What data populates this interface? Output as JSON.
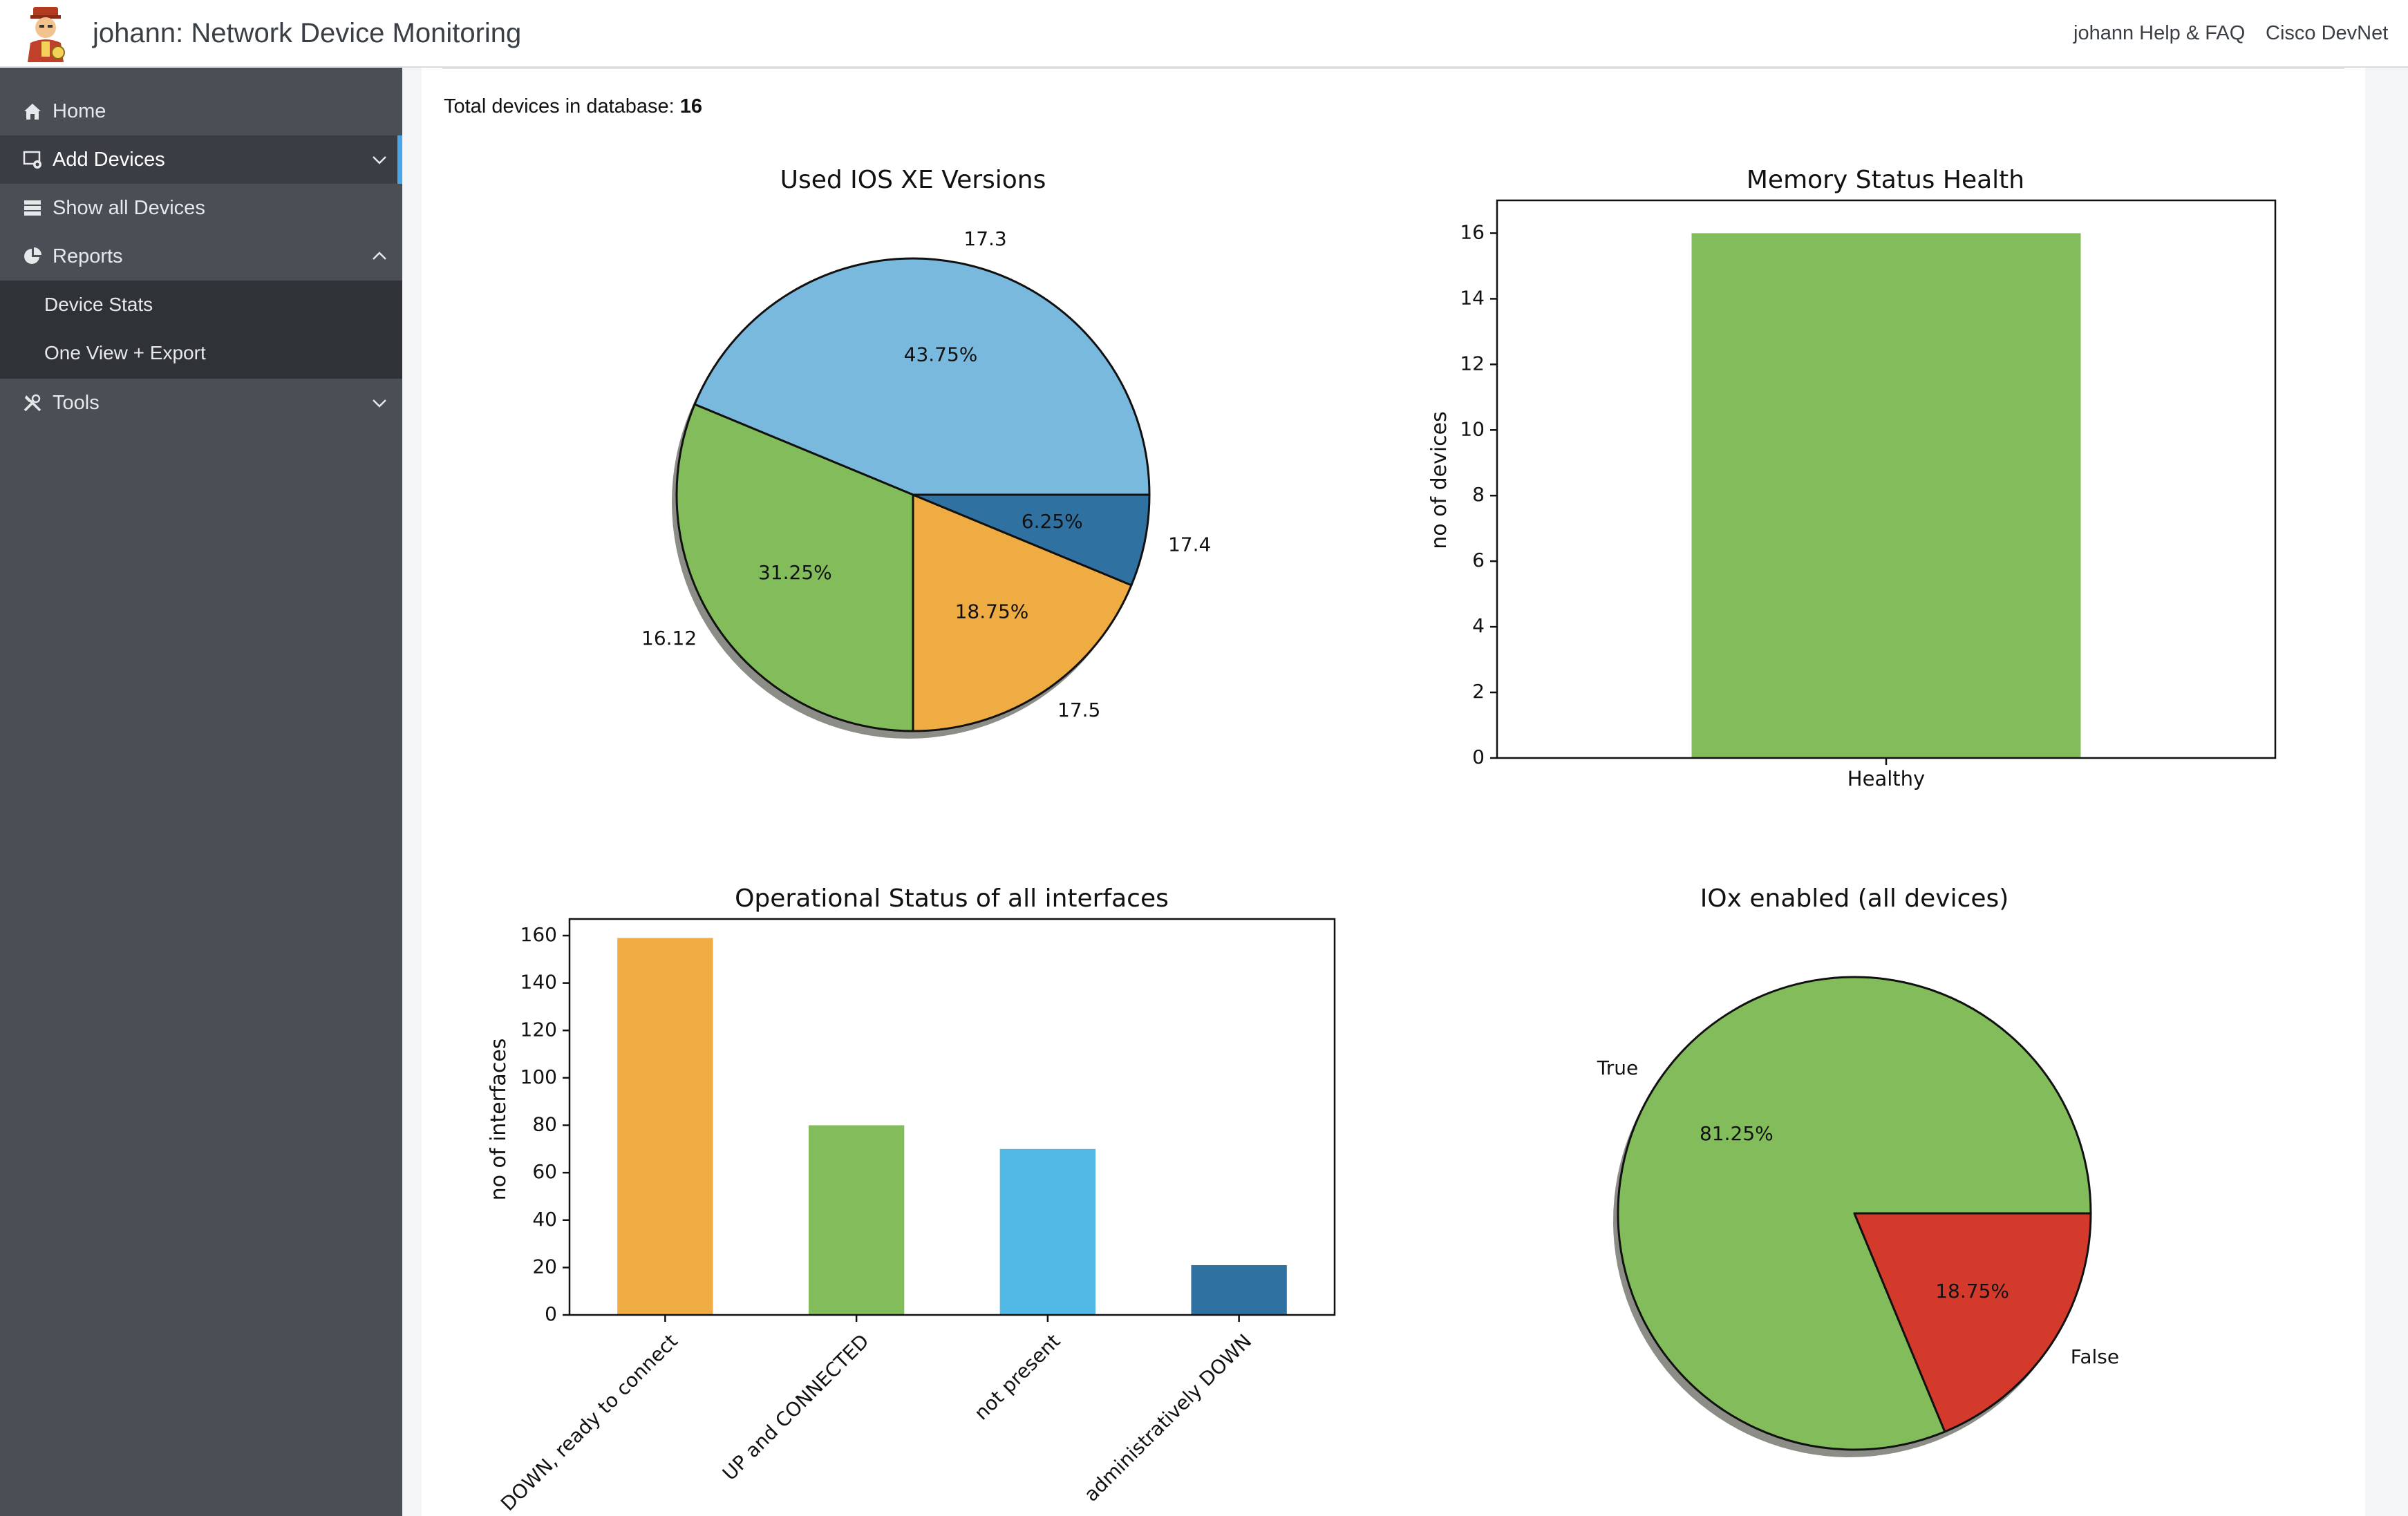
{
  "header": {
    "app_title": "johann: Network Device Monitoring",
    "links": [
      "johann Help & FAQ",
      "Cisco DevNet"
    ]
  },
  "sidebar": {
    "items": [
      {
        "label": "Home",
        "icon": "home-icon"
      },
      {
        "label": "Add Devices",
        "icon": "add-device-icon",
        "active": true
      },
      {
        "label": "Show all Devices",
        "icon": "list-icon"
      },
      {
        "label": "Reports",
        "icon": "pie-chart-icon",
        "expanded": true,
        "children": [
          "Device Stats",
          "One View + Export"
        ]
      },
      {
        "label": "Tools",
        "icon": "tools-icon"
      }
    ]
  },
  "main": {
    "total_label": "Total devices in database:",
    "total_value": "16"
  },
  "colors": {
    "lightblue": "#79b9dd",
    "green": "#82bc5b",
    "orange": "#efac42",
    "darkblue": "#2f72a1",
    "skyblue": "#52b9e7",
    "red": "#d43a2c",
    "accent": "#49a6e8"
  },
  "chart_data": [
    {
      "type": "pie",
      "title": "Used IOS XE Versions",
      "labels": [
        "17.3",
        "16.12",
        "17.5",
        "17.4"
      ],
      "values": [
        43.75,
        31.25,
        18.75,
        6.25
      ],
      "percent_labels": [
        "43.75%",
        "31.25%",
        "18.75%",
        "6.25%"
      ],
      "colors": [
        "#79b9dd",
        "#82bc5b",
        "#efac42",
        "#2f72a1"
      ]
    },
    {
      "type": "bar",
      "title": "Memory Status Health",
      "categories": [
        "Healthy"
      ],
      "values": [
        16
      ],
      "xlabel": "",
      "ylabel": "no of devices",
      "ylim": [
        0,
        17
      ],
      "yticks": [
        0,
        2,
        4,
        6,
        8,
        10,
        12,
        14,
        16
      ],
      "colors": [
        "#82bc5b"
      ]
    },
    {
      "type": "bar",
      "title": "Operational Status of all interfaces",
      "categories": [
        "DOWN, ready to connect",
        "UP and CONNECTED",
        "not present",
        "administratively DOWN"
      ],
      "values": [
        159,
        80,
        70,
        21
      ],
      "xlabel": "",
      "ylabel": "no of interfaces",
      "ylim": [
        0,
        167
      ],
      "yticks": [
        0,
        20,
        40,
        60,
        80,
        100,
        120,
        140,
        160
      ],
      "colors": [
        "#efac42",
        "#82bc5b",
        "#52b9e7",
        "#2f72a1"
      ]
    },
    {
      "type": "pie",
      "title": "IOx enabled (all devices)",
      "labels": [
        "True",
        "False"
      ],
      "values": [
        81.25,
        18.75
      ],
      "percent_labels": [
        "81.25%",
        "18.75%"
      ],
      "colors": [
        "#82bc5b",
        "#d43a2c"
      ]
    }
  ]
}
